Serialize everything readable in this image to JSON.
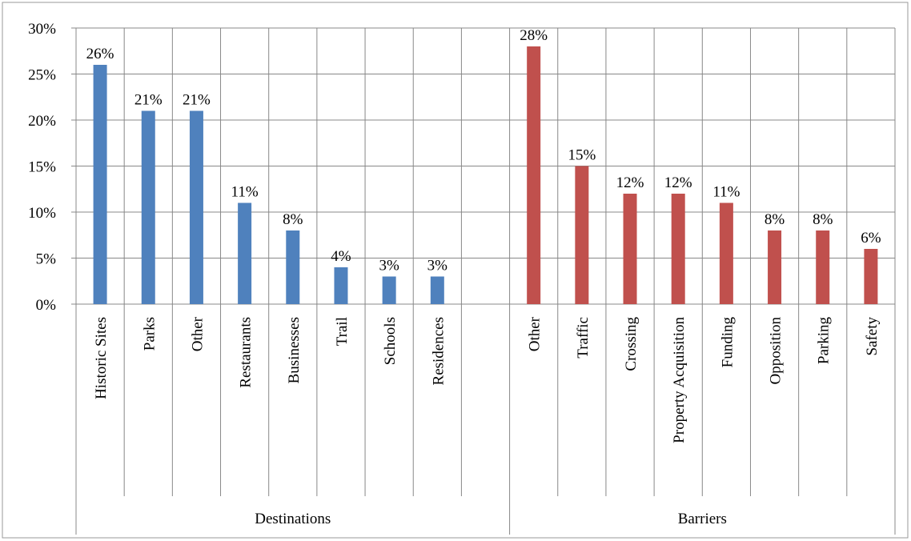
{
  "chart_data": {
    "type": "bar",
    "groups": [
      {
        "name": "Destinations",
        "color": "#4F81BD",
        "categories": [
          "Historic Sites",
          "Parks",
          "Other",
          "Restaurants",
          "Businesses",
          "Trail",
          "Schools",
          "Residences"
        ],
        "values": [
          26,
          21,
          21,
          11,
          8,
          4,
          3,
          3
        ],
        "labels": [
          "26%",
          "21%",
          "21%",
          "11%",
          "8%",
          "4%",
          "3%",
          "3%"
        ]
      },
      {
        "name": "Barriers",
        "color": "#C0504D",
        "categories": [
          "Other",
          "Traffic",
          "Crossing",
          "Property Acquisition",
          "Funding",
          "Opposition",
          "Parking",
          "Safety"
        ],
        "values": [
          28,
          15,
          12,
          12,
          11,
          8,
          8,
          6
        ],
        "labels": [
          "28%",
          "15%",
          "12%",
          "12%",
          "11%",
          "8%",
          "8%",
          "6%"
        ]
      }
    ],
    "ylim": [
      0,
      30
    ],
    "y_ticks": [
      0,
      5,
      10,
      15,
      20,
      25,
      30
    ],
    "y_tick_labels": [
      "0%",
      "5%",
      "10%",
      "15%",
      "20%",
      "25%",
      "30%"
    ],
    "grid": true,
    "gridline_color": "#888888",
    "border_color": "#999999",
    "title": "",
    "xlabel": "",
    "ylabel": ""
  }
}
